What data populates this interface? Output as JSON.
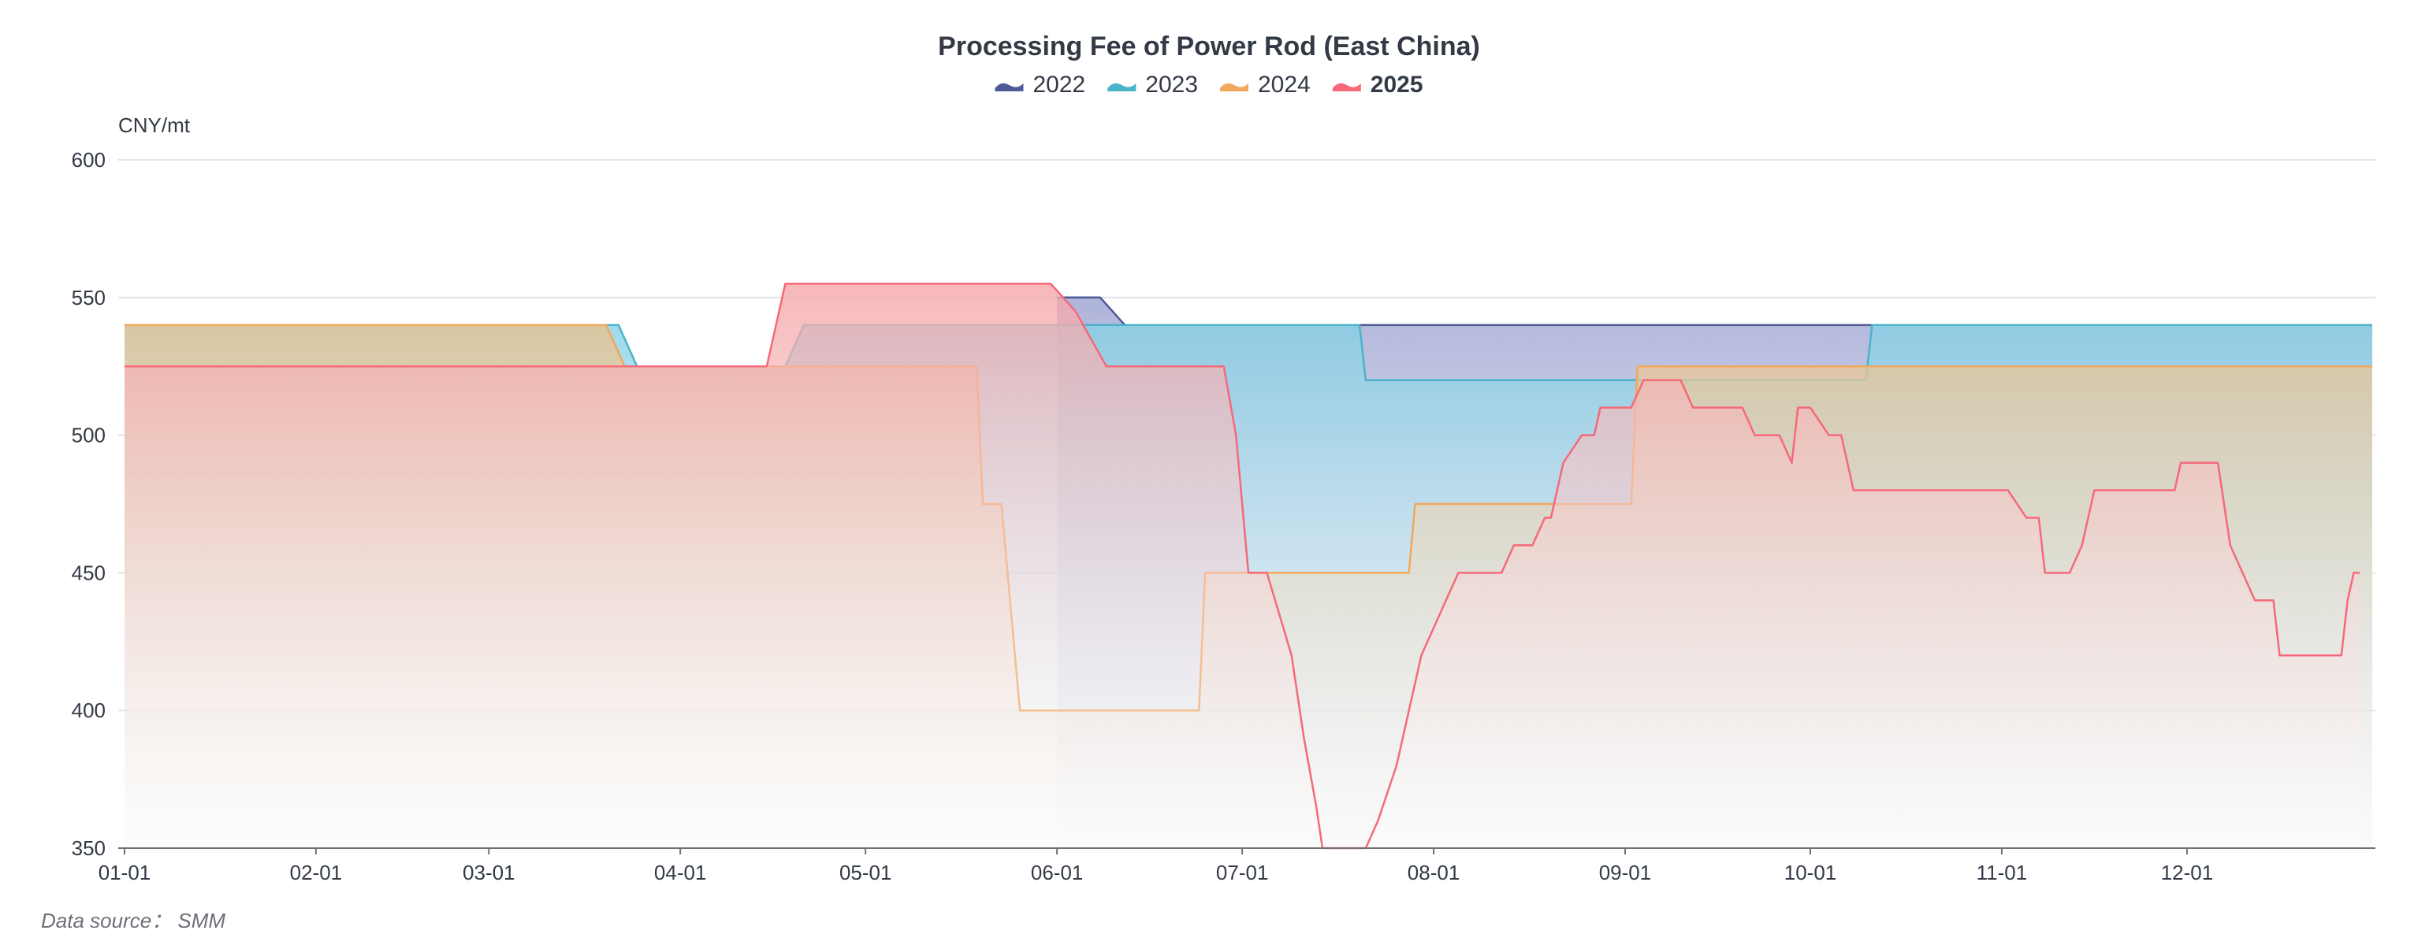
{
  "chart_data": {
    "type": "area",
    "title": "Processing Fee of Power Rod (East China)",
    "unit_label": "CNY/mt",
    "source_label": "Data source： SMM",
    "ylim": [
      350,
      600
    ],
    "yticks": [
      350,
      400,
      450,
      500,
      550,
      600
    ],
    "x_axis": {
      "type": "day_of_year",
      "range": [
        "01-01",
        "12-31"
      ],
      "tick_labels": [
        "01-01",
        "02-01",
        "03-01",
        "04-01",
        "05-01",
        "06-01",
        "07-01",
        "08-01",
        "09-01",
        "10-01",
        "11-01",
        "12-01"
      ]
    },
    "grid": true,
    "legend_position": "top-center",
    "series": [
      {
        "name": "2022",
        "color": "#4e5a96",
        "fill_top": "#9aa0d0",
        "fill_bottom": "#eceef8",
        "bold": false,
        "points": [
          [
            "06-01",
            550
          ],
          [
            "06-08",
            550
          ],
          [
            "06-12",
            540
          ],
          [
            "12-31",
            540
          ]
        ]
      },
      {
        "name": "2023",
        "color": "#4ab3c9",
        "fill_top": "#86d0e4",
        "fill_bottom": "#f6fcfd",
        "bold": false,
        "points": [
          [
            "01-01",
            540
          ],
          [
            "03-22",
            540
          ],
          [
            "03-25",
            525
          ],
          [
            "04-18",
            525
          ],
          [
            "04-21",
            540
          ],
          [
            "07-20",
            540
          ],
          [
            "07-21",
            520
          ],
          [
            "10-10",
            520
          ],
          [
            "10-11",
            540
          ],
          [
            "12-31",
            540
          ]
        ]
      },
      {
        "name": "2024",
        "color": "#f0a85a",
        "fill_top": "#e8c290",
        "fill_bottom": "#fbf6ee",
        "bold": false,
        "points": [
          [
            "01-01",
            540
          ],
          [
            "03-20",
            540
          ],
          [
            "03-23",
            525
          ],
          [
            "05-19",
            525
          ],
          [
            "05-20",
            475
          ],
          [
            "05-23",
            475
          ],
          [
            "05-26",
            400
          ],
          [
            "06-24",
            400
          ],
          [
            "06-25",
            450
          ],
          [
            "07-28",
            450
          ],
          [
            "07-29",
            475
          ],
          [
            "09-02",
            475
          ],
          [
            "09-03",
            525
          ],
          [
            "12-31",
            525
          ]
        ]
      },
      {
        "name": "2025",
        "color": "#f5697a",
        "fill_top": "#f5a5a8",
        "fill_bottom": "#ffffff",
        "bold": true,
        "points": [
          [
            "01-01",
            525
          ],
          [
            "04-15",
            525
          ],
          [
            "04-18",
            555
          ],
          [
            "05-31",
            555
          ],
          [
            "06-04",
            545
          ],
          [
            "06-09",
            525
          ],
          [
            "06-28",
            525
          ],
          [
            "06-30",
            500
          ],
          [
            "07-02",
            450
          ],
          [
            "07-05",
            450
          ],
          [
            "07-07",
            435
          ],
          [
            "07-09",
            420
          ],
          [
            "07-11",
            390
          ],
          [
            "07-13",
            365
          ],
          [
            "07-14",
            350
          ],
          [
            "07-21",
            350
          ],
          [
            "07-23",
            360
          ],
          [
            "07-26",
            380
          ],
          [
            "07-28",
            400
          ],
          [
            "07-30",
            420
          ],
          [
            "08-01",
            430
          ],
          [
            "08-03",
            440
          ],
          [
            "08-05",
            450
          ],
          [
            "08-12",
            450
          ],
          [
            "08-14",
            460
          ],
          [
            "08-17",
            460
          ],
          [
            "08-19",
            470
          ],
          [
            "08-20",
            470
          ],
          [
            "08-22",
            490
          ],
          [
            "08-25",
            500
          ],
          [
            "08-27",
            500
          ],
          [
            "08-28",
            510
          ],
          [
            "09-02",
            510
          ],
          [
            "09-04",
            520
          ],
          [
            "09-10",
            520
          ],
          [
            "09-12",
            510
          ],
          [
            "09-20",
            510
          ],
          [
            "09-22",
            500
          ],
          [
            "09-26",
            500
          ],
          [
            "09-28",
            490
          ],
          [
            "09-29",
            510
          ],
          [
            "10-01",
            510
          ],
          [
            "10-04",
            500
          ],
          [
            "10-06",
            500
          ],
          [
            "10-08",
            480
          ],
          [
            "11-02",
            480
          ],
          [
            "11-05",
            470
          ],
          [
            "11-07",
            470
          ],
          [
            "11-08",
            450
          ],
          [
            "11-12",
            450
          ],
          [
            "11-14",
            460
          ],
          [
            "11-16",
            480
          ],
          [
            "11-29",
            480
          ],
          [
            "11-30",
            490
          ],
          [
            "12-06",
            490
          ],
          [
            "12-08",
            460
          ],
          [
            "12-10",
            450
          ],
          [
            "12-12",
            440
          ],
          [
            "12-15",
            440
          ],
          [
            "12-16",
            420
          ],
          [
            "12-26",
            420
          ],
          [
            "12-27",
            440
          ],
          [
            "12-28",
            450
          ],
          [
            "12-29",
            450
          ]
        ]
      }
    ]
  }
}
